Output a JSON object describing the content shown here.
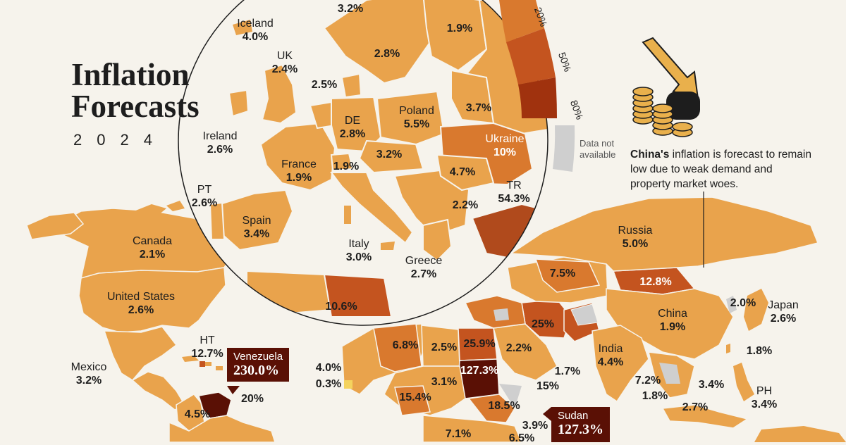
{
  "title": {
    "line1": "Inflation",
    "line2": "Forecasts",
    "year": "2024"
  },
  "legend": {
    "ticks": [
      "20%",
      "50%",
      "80%"
    ],
    "not_available": "Data not available"
  },
  "note": {
    "country": "China's",
    "text": " inflation is forecast to remain low due to weak demand and property market woes."
  },
  "callouts": {
    "venezuela": {
      "name": "Venezuela",
      "value": "230.0%"
    },
    "sudan": {
      "name": "Sudan",
      "value": "127.3%"
    }
  },
  "europe": [
    {
      "key": "iceland",
      "name": "Iceland",
      "value": "4.0%"
    },
    {
      "key": "uk",
      "name": "UK",
      "value": "2.4%"
    },
    {
      "key": "ireland",
      "name": "Ireland",
      "value": "2.6%"
    },
    {
      "key": "pt",
      "name": "PT",
      "value": "2.6%"
    },
    {
      "key": "spain",
      "name": "Spain",
      "value": "3.4%"
    },
    {
      "key": "france",
      "name": "France",
      "value": "1.9%"
    },
    {
      "key": "de",
      "name": "DE",
      "value": "2.8%"
    },
    {
      "key": "poland",
      "name": "Poland",
      "value": "5.5%"
    },
    {
      "key": "ukraine",
      "name": "Ukraine",
      "value": "10%"
    },
    {
      "key": "tr",
      "name": "TR",
      "value": "54.3%"
    },
    {
      "key": "italy",
      "name": "Italy",
      "value": "3.0%"
    },
    {
      "key": "greece",
      "name": "Greece",
      "value": "2.7%"
    }
  ],
  "europe_values": [
    "3.2%",
    "1.9%",
    "2.8%",
    "2.5%",
    "3.7%",
    "1.9%",
    "3.2%",
    "4.7%",
    "2.2%",
    "10.6%"
  ],
  "world": [
    {
      "key": "canada",
      "name": "Canada",
      "value": "2.1%"
    },
    {
      "key": "us",
      "name": "United States",
      "value": "2.6%"
    },
    {
      "key": "mexico",
      "name": "Mexico",
      "value": "3.2%"
    },
    {
      "key": "ht",
      "name": "HT",
      "value": "12.7%"
    },
    {
      "key": "russia",
      "name": "Russia",
      "value": "5.0%"
    },
    {
      "key": "china",
      "name": "China",
      "value": "1.9%"
    },
    {
      "key": "japan",
      "name": "Japan",
      "value": "2.6%"
    },
    {
      "key": "india",
      "name": "India",
      "value": "4.4%"
    },
    {
      "key": "ph",
      "name": "PH",
      "value": "3.4%"
    }
  ],
  "world_values": [
    "7.5%",
    "12.8%",
    "25%",
    "2.0%",
    "1.8%",
    "2.2%",
    "1.7%",
    "15%",
    "7.2%",
    "1.8%",
    "3.4%",
    "2.7%",
    "6.8%",
    "2.5%",
    "25.9%",
    "127.3%",
    "4.0%",
    "0.3%",
    "3.1%",
    "15.4%",
    "18.5%",
    "7.1%",
    "3.9%",
    "6.5%",
    "4.5%",
    "20%"
  ],
  "colors": {
    "background": "#f6f3ec",
    "low": "#e9a34c",
    "mid": "#d9792e",
    "high": "#c4541f",
    "very_high": "#8e2d0c",
    "extreme": "#5a1005",
    "na": "#cfcfcf"
  }
}
